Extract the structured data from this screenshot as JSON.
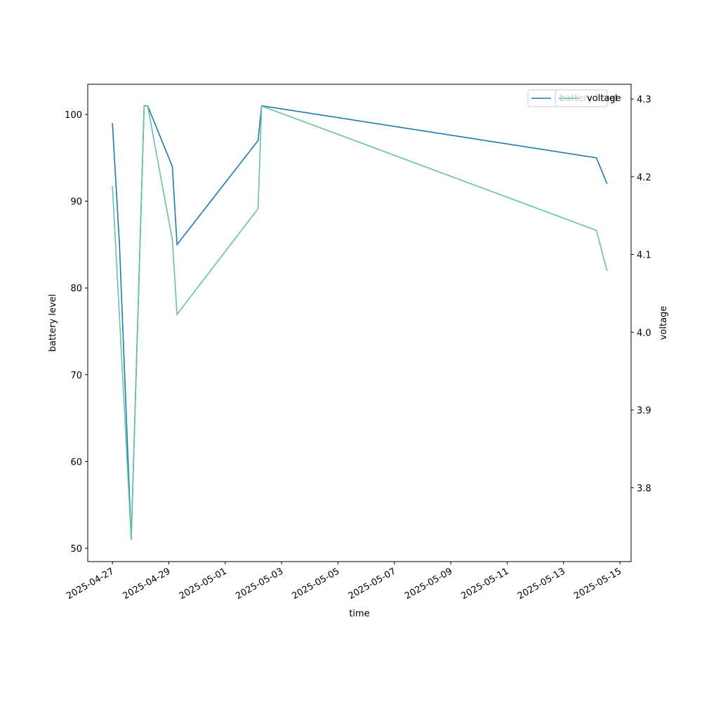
{
  "chart_data": {
    "type": "line",
    "x_label": "time",
    "y_label": "battery level",
    "y2_label": "voltage",
    "x": [
      "2025-04-27T00:00",
      "2025-04-27T06:00",
      "2025-04-27T16:00",
      "2025-04-28T03:00",
      "2025-04-28T06:00",
      "2025-04-29T03:00",
      "2025-04-29T07:00",
      "2025-05-02T04:00",
      "2025-05-02T07:00",
      "2025-05-14T04:00",
      "2025-05-14T13:00"
    ],
    "series": [
      {
        "name": "battery level",
        "color": "#1f77b4",
        "axis": "y",
        "values": [
          99,
          85,
          51,
          101,
          101,
          94,
          85,
          97,
          101,
          95,
          92
        ]
      },
      {
        "name": "voltage",
        "color": "#66c2a5",
        "axis": "y2",
        "values": [
          4.188,
          4.02,
          3.734,
          4.291,
          4.291,
          4.119,
          4.023,
          4.159,
          4.291,
          4.131,
          4.079
        ]
      }
    ],
    "xlim": [
      "2025-04-26T03:00",
      "2025-05-15T09:30"
    ],
    "xticks": [
      "2025-04-27",
      "2025-04-29",
      "2025-05-01",
      "2025-05-03",
      "2025-05-05",
      "2025-05-07",
      "2025-05-09",
      "2025-05-11",
      "2025-05-13",
      "2025-05-15"
    ],
    "ylim": [
      48.46,
      103.48
    ],
    "yticks": [
      50,
      60,
      70,
      80,
      90,
      100
    ],
    "y2lim": [
      3.705,
      4.319
    ],
    "y2ticks": [
      3.8,
      3.9,
      {
        "value": 4,
        "label": "4.0"
      },
      4.1,
      4.2,
      4.3
    ],
    "legend": "upper right"
  }
}
